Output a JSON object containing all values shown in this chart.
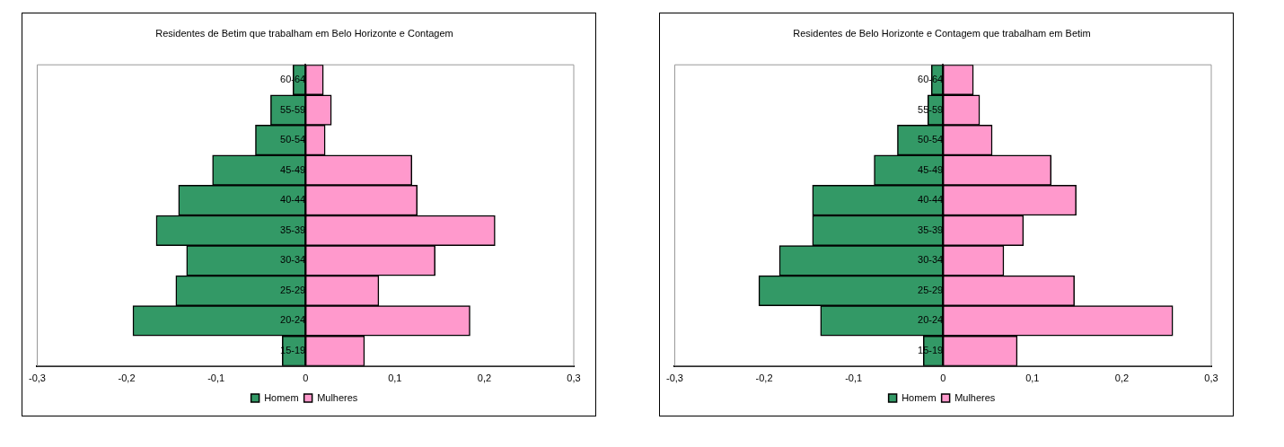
{
  "chart_data": [
    {
      "type": "bar",
      "orientation": "horizontal",
      "stacked": true,
      "title": "Residentes de Betim que trabalham em Belo Horizonte e Contagem",
      "categories": [
        "60-64",
        "55-59",
        "50-54",
        "45-49",
        "40-44",
        "35-39",
        "30-34",
        "25-29",
        "20-24",
        "15-19"
      ],
      "series": [
        {
          "name": "Homem",
          "color": "#339966",
          "values": [
            -0.014,
            -0.039,
            -0.056,
            -0.104,
            -0.142,
            -0.167,
            -0.133,
            -0.145,
            -0.193,
            -0.026
          ]
        },
        {
          "name": "Mulheres",
          "color": "#ff99cc",
          "values": [
            0.02,
            0.029,
            0.022,
            0.119,
            0.125,
            0.212,
            0.145,
            0.082,
            0.184,
            0.066
          ]
        }
      ],
      "xlim": [
        -0.3,
        0.3
      ],
      "xticks": [
        {
          "value": -0.3,
          "label": "-0,3"
        },
        {
          "value": -0.2,
          "label": "-0,2"
        },
        {
          "value": -0.1,
          "label": "-0,1"
        },
        0,
        {
          "value": 0.1,
          "label": "0,1"
        },
        {
          "value": 0.2,
          "label": "0,2"
        },
        {
          "value": 0.3,
          "label": "0,3"
        }
      ],
      "legend": "bottom"
    },
    {
      "type": "bar",
      "orientation": "horizontal",
      "stacked": true,
      "title": "Residentes de Belo Horizonte e Contagem que trabalham em Betim",
      "categories": [
        "60-64",
        "55-59",
        "50-54",
        "45-49",
        "40-44",
        "35-39",
        "30-34",
        "25-29",
        "20-24",
        "15-19"
      ],
      "series": [
        {
          "name": "Homem",
          "color": "#339966",
          "values": [
            -0.013,
            -0.017,
            -0.051,
            -0.077,
            -0.146,
            -0.146,
            -0.183,
            -0.206,
            -0.137,
            -0.022
          ]
        },
        {
          "name": "Mulheres",
          "color": "#ff99cc",
          "values": [
            0.034,
            0.041,
            0.055,
            0.121,
            0.149,
            0.09,
            0.068,
            0.147,
            0.257,
            0.083
          ]
        }
      ],
      "xlim": [
        -0.3,
        0.3
      ],
      "xticks": [
        {
          "value": -0.3,
          "label": "-0,3"
        },
        {
          "value": -0.2,
          "label": "-0,2"
        },
        {
          "value": -0.1,
          "label": "-0,1"
        },
        0,
        {
          "value": 0.1,
          "label": "0,1"
        },
        {
          "value": 0.2,
          "label": "0,2"
        },
        {
          "value": 0.3,
          "label": "0,3"
        }
      ],
      "legend": "bottom"
    }
  ]
}
